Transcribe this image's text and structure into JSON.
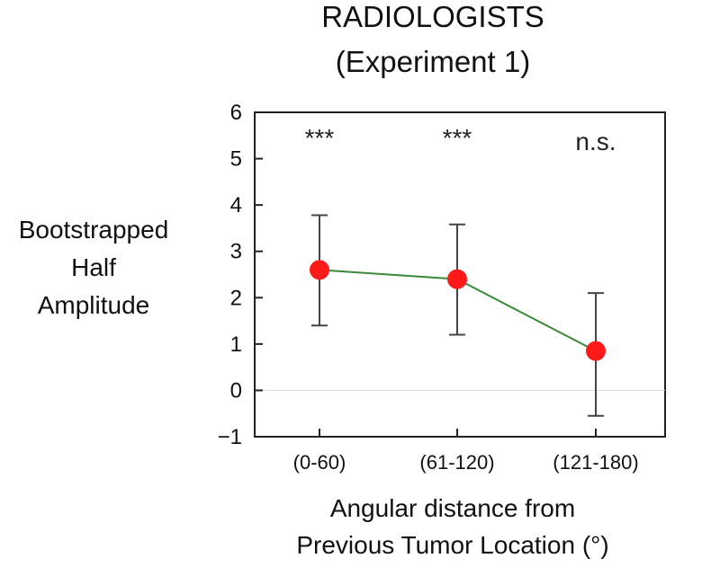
{
  "chart_data": {
    "type": "line",
    "title": [
      "RADIOLOGISTS",
      "(Experiment 1)"
    ],
    "xlabel": [
      "Angular distance from",
      "Previous Tumor Location (°)"
    ],
    "ylabel": [
      "Bootstrapped",
      "Half",
      "Amplitude"
    ],
    "categories": [
      "(0-60)",
      "(61-120)",
      "(121-180)"
    ],
    "series": [
      {
        "values": [
          2.6,
          2.4,
          0.85
        ],
        "error_low": [
          1.4,
          1.2,
          -0.55
        ],
        "error_high": [
          3.78,
          3.58,
          2.1
        ],
        "line_color": "#3a8a3a",
        "marker_color": "#ff1a1a"
      }
    ],
    "ylim": [
      -1,
      6
    ],
    "yticks": [
      "−1",
      "0",
      "1",
      "2",
      "3",
      "4",
      "5",
      "6"
    ],
    "yticks_values": [
      -1,
      0,
      1,
      2,
      3,
      4,
      5,
      6
    ],
    "significance": [
      "***",
      "***",
      "n.s."
    ],
    "grid": false
  }
}
